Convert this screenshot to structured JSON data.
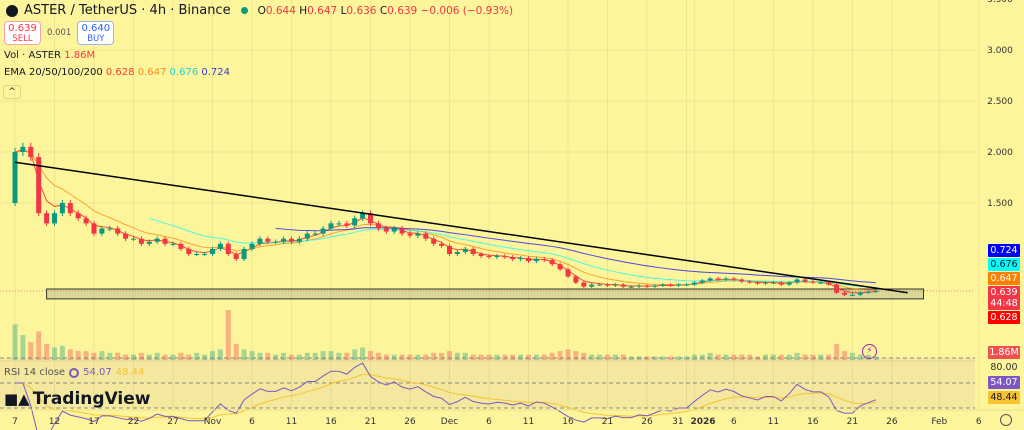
{
  "header": {
    "symbol": "ASTER / TetherUS · 4h · Binance",
    "open_label": "O",
    "open": "0.644",
    "high_label": "H",
    "high": "0.647",
    "low_label": "L",
    "low": "0.636",
    "close_label": "C",
    "close": "0.639",
    "change": "−0.006 (−0.93%)"
  },
  "trade": {
    "sell_price": "0.639",
    "sell_label": "SELL",
    "spread": "0.001",
    "buy_price": "0.640",
    "buy_label": "BUY"
  },
  "volume_legend": {
    "label": "Vol · ASTER",
    "value": "1.86M"
  },
  "ema_legend": {
    "label": "EMA 20/50/100/200",
    "v20": "0.628",
    "v50": "0.647",
    "v100": "0.676",
    "v200": "0.724"
  },
  "rsi_legend": {
    "label": "RSI 14 close",
    "value": "54.07",
    "ma": "48.44"
  },
  "branding": {
    "name": "TradingView"
  },
  "price_labels": {
    "ema200": "0.724",
    "ema100": "0.676",
    "ema50": "0.647",
    "last": "0.639",
    "countdown": "44:48",
    "ema20": "0.628",
    "volume": "1.86M",
    "rsi_top": "80.00",
    "rsi": "54.07",
    "rsi_ma": "48.44"
  },
  "colors": {
    "background": "#fdf59c",
    "up": "#089981",
    "down": "#f23645",
    "ema20": "#ff0000",
    "ema50": "#ff7f00",
    "ema100": "#00ffff",
    "ema200": "#0000ff",
    "rsi": "#7e57c2",
    "rsi_ma": "#f7c430",
    "trendline": "#000000"
  },
  "icons": {
    "collapse": "chevron-up-icon",
    "replay": "lightning-icon",
    "settings": "gear-icon"
  },
  "chart_data": {
    "type": "candlestick",
    "start_date": "2025-10-07",
    "interval": "1d (sampled from 4h)",
    "first_open": 1.5,
    "closes": [
      2.0,
      2.05,
      1.95,
      1.4,
      1.3,
      1.4,
      1.5,
      1.4,
      1.35,
      1.3,
      1.2,
      1.25,
      1.25,
      1.2,
      1.15,
      1.15,
      1.1,
      1.12,
      1.15,
      1.1,
      1.1,
      1.05,
      1.0,
      1.0,
      1.0,
      1.05,
      1.1,
      1.0,
      0.95,
      1.05,
      1.1,
      1.15,
      1.12,
      1.12,
      1.15,
      1.12,
      1.15,
      1.2,
      1.2,
      1.25,
      1.3,
      1.3,
      1.28,
      1.35,
      1.4,
      1.3,
      1.25,
      1.22,
      1.25,
      1.2,
      1.18,
      1.2,
      1.15,
      1.1,
      1.08,
      1.0,
      1.02,
      1.05,
      1.0,
      0.98,
      0.97,
      0.98,
      0.97,
      0.95,
      0.96,
      0.93,
      0.95,
      0.94,
      0.9,
      0.85,
      0.78,
      0.72,
      0.68,
      0.7,
      0.7,
      0.69,
      0.7,
      0.68,
      0.68,
      0.69,
      0.68,
      0.69,
      0.7,
      0.69,
      0.7,
      0.7,
      0.72,
      0.74,
      0.76,
      0.75,
      0.76,
      0.75,
      0.73,
      0.72,
      0.71,
      0.72,
      0.72,
      0.7,
      0.72,
      0.75,
      0.73,
      0.72,
      0.72,
      0.7,
      0.62,
      0.6,
      0.6,
      0.62,
      0.63,
      0.639
    ],
    "volume_m": [
      20,
      14,
      10,
      16,
      9,
      7,
      8,
      6,
      5,
      5,
      4,
      5,
      4,
      4,
      3,
      3,
      4,
      3,
      4,
      3,
      3,
      4,
      3,
      4,
      3,
      5,
      6,
      28,
      9,
      6,
      5,
      4,
      4,
      3,
      4,
      3,
      3,
      4,
      4,
      5,
      5,
      4,
      4,
      6,
      7,
      5,
      4,
      3,
      3,
      3,
      3,
      3,
      3,
      4,
      4,
      5,
      4,
      4,
      3,
      3,
      3,
      3,
      3,
      3,
      3,
      3,
      3,
      3,
      4,
      5,
      6,
      5,
      4,
      3,
      3,
      3,
      3,
      3,
      2,
      2,
      2,
      2,
      2,
      2,
      2,
      2,
      3,
      3,
      4,
      3,
      3,
      3,
      3,
      3,
      2,
      3,
      3,
      3,
      3,
      4,
      3,
      3,
      3,
      3,
      9,
      5,
      4,
      3,
      3,
      1.86
    ],
    "price_axis": {
      "ticks": [
        "3.500",
        "3.000",
        "2.500",
        "2.000",
        "1.500"
      ],
      "range": [
        0.5,
        3.5
      ]
    },
    "rsi_axis": {
      "levels": [
        70,
        50,
        30
      ],
      "top_label": "80.00"
    },
    "trendline": {
      "from": [
        "2025-10-07",
        1.9
      ],
      "to": [
        "2026-01-28",
        0.62
      ]
    },
    "support_zone": {
      "from": "2025-10-11",
      "to": "2026-01-30",
      "top": 0.657,
      "bottom": 0.56
    },
    "x_ticks": [
      [
        "2025-10-07",
        "7"
      ],
      [
        "2025-10-12",
        "12"
      ],
      [
        "2025-10-17",
        "17"
      ],
      [
        "2025-10-22",
        "22"
      ],
      [
        "2025-10-27",
        "27"
      ],
      [
        "2025-11-01",
        "Nov"
      ],
      [
        "2025-11-06",
        "6"
      ],
      [
        "2025-11-11",
        "11"
      ],
      [
        "2025-11-16",
        "16"
      ],
      [
        "2025-11-21",
        "21"
      ],
      [
        "2025-11-26",
        "26"
      ],
      [
        "2025-12-01",
        "Dec"
      ],
      [
        "2025-12-06",
        "6"
      ],
      [
        "2025-12-11",
        "11"
      ],
      [
        "2025-12-16",
        "16"
      ],
      [
        "2025-12-21",
        "21"
      ],
      [
        "2025-12-26",
        "26"
      ],
      [
        "2025-12-31",
        "31"
      ],
      [
        "2026-01-01",
        "2026"
      ],
      [
        "2026-01-06",
        "6"
      ],
      [
        "2026-01-11",
        "11"
      ],
      [
        "2026-01-16",
        "16"
      ],
      [
        "2026-01-21",
        "21"
      ],
      [
        "2026-01-26",
        "26"
      ],
      [
        "2026-02-01",
        "Feb"
      ],
      [
        "2026-02-06",
        "6"
      ]
    ]
  }
}
